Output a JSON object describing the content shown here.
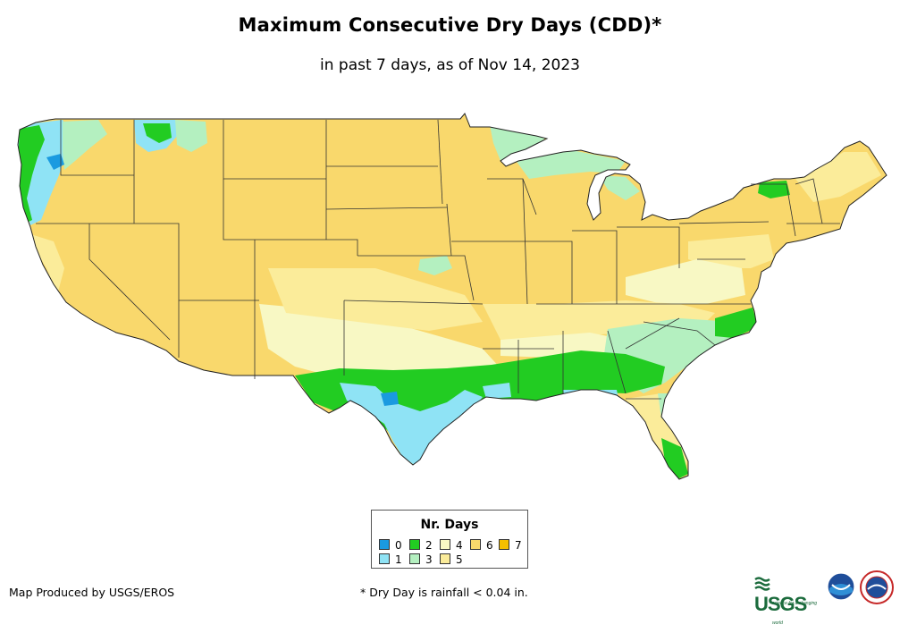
{
  "title": "Maximum Consecutive Dry Days (CDD)*",
  "subtitle": "in past 7 days, as of Nov 14, 2023",
  "legend": {
    "title": "Nr. Days",
    "items": [
      {
        "label": "0",
        "color": "#1a9ae0"
      },
      {
        "label": "1",
        "color": "#8fe3f5"
      },
      {
        "label": "2",
        "color": "#22cc22"
      },
      {
        "label": "3",
        "color": "#b4f0c0"
      },
      {
        "label": "4",
        "color": "#f8f8c4"
      },
      {
        "label": "5",
        "color": "#fbec9a"
      },
      {
        "label": "6",
        "color": "#f9d86c"
      },
      {
        "label": "7",
        "color": "#f5bf00"
      }
    ]
  },
  "credit": "Map Produced by USGS/EROS",
  "footnote": "* Dry Day is rainfall < 0.04 in.",
  "logos": {
    "usgs": {
      "text": "USGS",
      "tagline": "science for a changing world"
    },
    "noaa": {
      "text": "NOAA"
    },
    "nws": {
      "text": "NWS"
    }
  }
}
